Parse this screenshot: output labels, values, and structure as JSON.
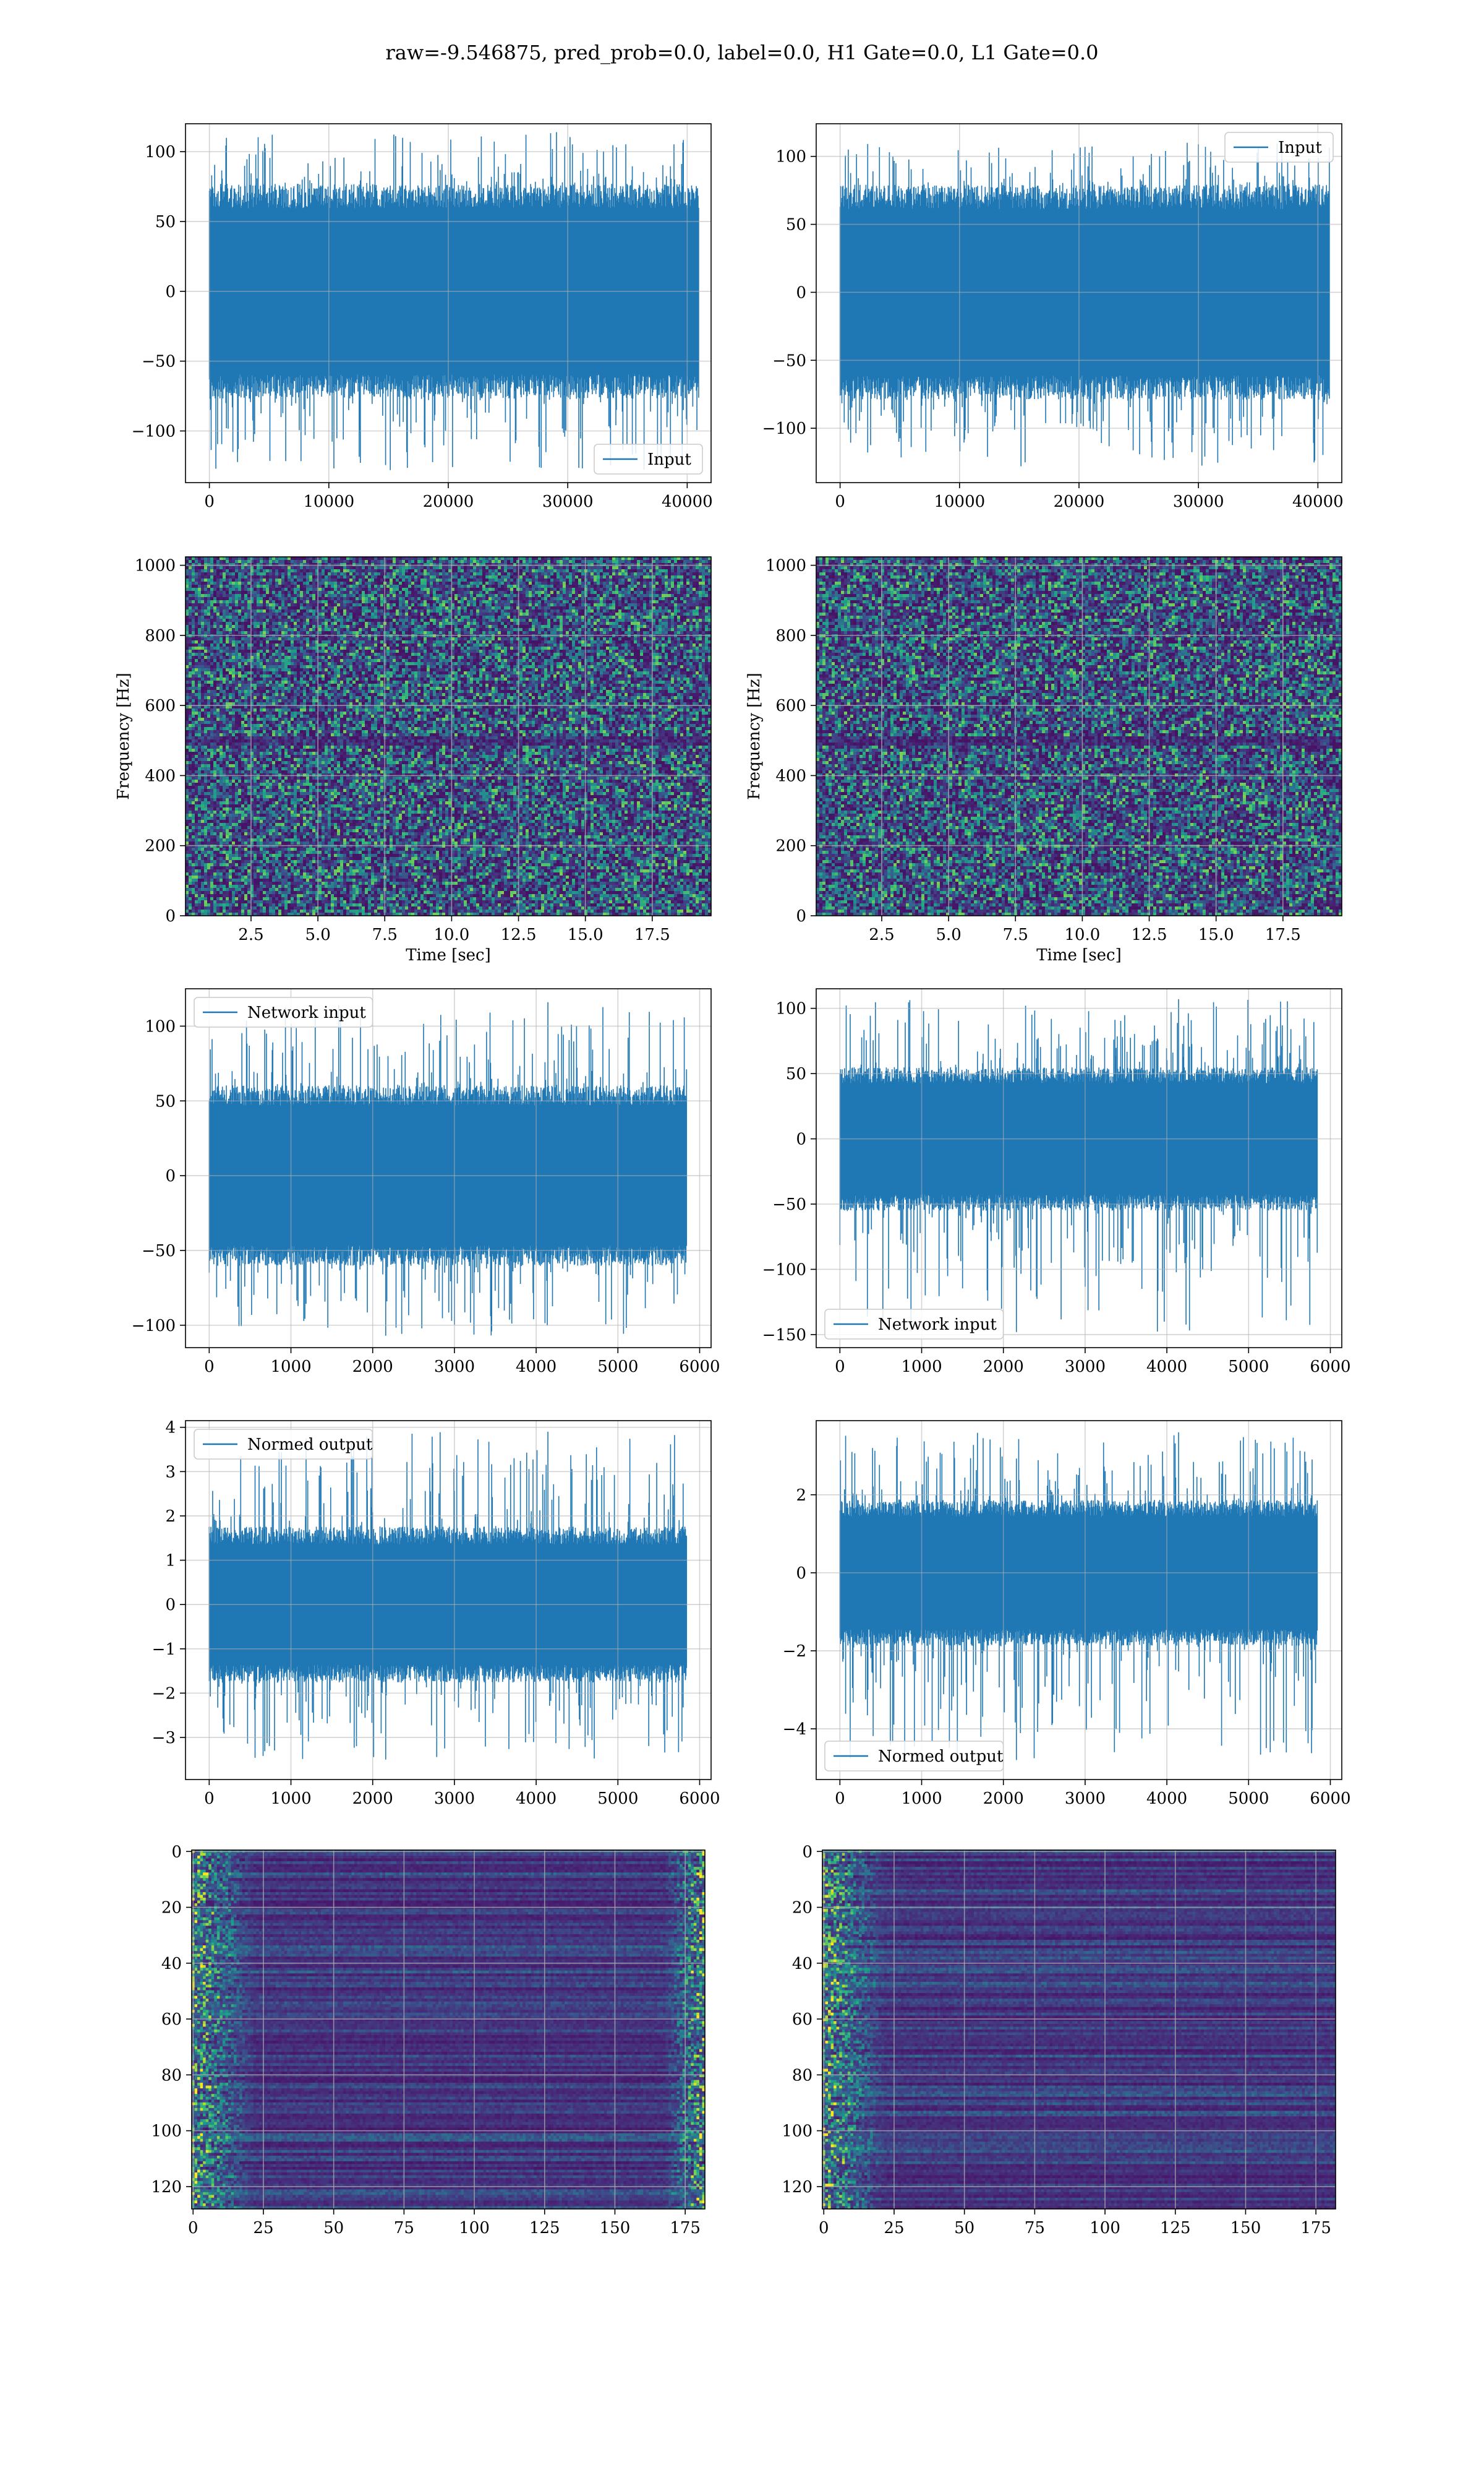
{
  "figure": {
    "suptitle": "raw=-9.546875, pred_prob=0.0, label=0.0, H1 Gate=0.0, L1 Gate=0.0"
  },
  "colors": {
    "series": "#1f77b4",
    "grid": "#b0b0b0",
    "viridis": [
      "#440154",
      "#482878",
      "#3e4989",
      "#31688e",
      "#26828e",
      "#1f9e89",
      "#35b779",
      "#6ece58",
      "#b5de2b",
      "#fde725"
    ]
  },
  "chart_data": [
    {
      "id": "raw-h1",
      "type": "line",
      "xlim": [
        -2000,
        42000
      ],
      "ylim": [
        -137,
        120
      ],
      "xticks": [
        0,
        10000,
        20000,
        30000,
        40000
      ],
      "yticks": [
        -100,
        -50,
        0,
        50,
        100
      ],
      "xticklabels": [
        "0",
        "10000",
        "20000",
        "30000",
        "40000"
      ],
      "yticklabels": [
        "−100",
        "−50",
        "0",
        "50",
        "100"
      ],
      "xlabel": "",
      "ylabel": "",
      "grid": true,
      "legend": {
        "loc": "lower-right",
        "entries": [
          "Input"
        ]
      },
      "series": [
        {
          "name": "Input",
          "x_range": [
            0,
            40960
          ],
          "envelope": [
            -70,
            70
          ],
          "extremes": [
            -128,
            114
          ]
        }
      ]
    },
    {
      "id": "raw-l1",
      "type": "line",
      "xlim": [
        -2000,
        42000
      ],
      "ylim": [
        -140,
        124
      ],
      "xticks": [
        0,
        10000,
        20000,
        30000,
        40000
      ],
      "yticks": [
        -100,
        -50,
        0,
        50,
        100
      ],
      "xticklabels": [
        "0",
        "10000",
        "20000",
        "30000",
        "40000"
      ],
      "yticklabels": [
        "−100",
        "−50",
        "0",
        "50",
        "100"
      ],
      "xlabel": "",
      "ylabel": "",
      "grid": true,
      "legend": {
        "loc": "upper-right",
        "entries": [
          "Input"
        ]
      },
      "series": [
        {
          "name": "Input",
          "x_range": [
            0,
            40960
          ],
          "envelope": [
            -72,
            72
          ],
          "extremes": [
            -128,
            110
          ]
        }
      ]
    },
    {
      "id": "spec-h1",
      "type": "heatmap",
      "xlim": [
        0.05,
        19.7
      ],
      "ylim": [
        0,
        1024
      ],
      "xticks": [
        2.5,
        5.0,
        7.5,
        10.0,
        12.5,
        15.0,
        17.5
      ],
      "yticks": [
        0,
        200,
        400,
        600,
        800,
        1000
      ],
      "xticklabels": [
        "2.5",
        "5.0",
        "7.5",
        "10.0",
        "12.5",
        "15.0",
        "17.5"
      ],
      "yticklabels": [
        "0",
        "200",
        "400",
        "600",
        "800",
        "1000"
      ],
      "xlabel": "Time [sec]",
      "ylabel": "Frequency [Hz]",
      "grid": true,
      "colormap": "viridis",
      "notes": "noise spectrogram, dark band near 500 Hz"
    },
    {
      "id": "spec-l1",
      "type": "heatmap",
      "xlim": [
        0.05,
        19.7
      ],
      "ylim": [
        0,
        1024
      ],
      "xticks": [
        2.5,
        5.0,
        7.5,
        10.0,
        12.5,
        15.0,
        17.5
      ],
      "yticks": [
        0,
        200,
        400,
        600,
        800,
        1000
      ],
      "xticklabels": [
        "2.5",
        "5.0",
        "7.5",
        "10.0",
        "12.5",
        "15.0",
        "17.5"
      ],
      "yticklabels": [
        "0",
        "200",
        "400",
        "600",
        "800",
        "1000"
      ],
      "xlabel": "Time [sec]",
      "ylabel": "Frequency [Hz]",
      "grid": true,
      "colormap": "viridis",
      "notes": "noise spectrogram, dark band near 500 Hz"
    },
    {
      "id": "net-h1",
      "type": "line",
      "xlim": [
        -290,
        6140
      ],
      "ylim": [
        -115,
        125
      ],
      "xticks": [
        0,
        1000,
        2000,
        3000,
        4000,
        5000,
        6000
      ],
      "yticks": [
        -100,
        -50,
        0,
        50,
        100
      ],
      "xticklabels": [
        "0",
        "1000",
        "2000",
        "3000",
        "4000",
        "5000",
        "6000"
      ],
      "yticklabels": [
        "−100",
        "−50",
        "0",
        "50",
        "100"
      ],
      "xlabel": "",
      "ylabel": "",
      "grid": true,
      "legend": {
        "loc": "upper-left",
        "entries": [
          "Network input"
        ]
      },
      "series": [
        {
          "name": "Network input",
          "x_range": [
            0,
            5840
          ],
          "envelope": [
            -55,
            55
          ],
          "extremes": [
            -107,
            116
          ]
        }
      ]
    },
    {
      "id": "net-l1",
      "type": "line",
      "xlim": [
        -290,
        6140
      ],
      "ylim": [
        -160,
        115
      ],
      "xticks": [
        0,
        1000,
        2000,
        3000,
        4000,
        5000,
        6000
      ],
      "yticks": [
        -150,
        -100,
        -50,
        0,
        50,
        100
      ],
      "xticklabels": [
        "0",
        "1000",
        "2000",
        "3000",
        "4000",
        "5000",
        "6000"
      ],
      "yticklabels": [
        "−150",
        "−100",
        "−50",
        "0",
        "50",
        "100"
      ],
      "xlabel": "",
      "ylabel": "",
      "grid": true,
      "legend": {
        "loc": "lower-left",
        "entries": [
          "Network input"
        ]
      },
      "series": [
        {
          "name": "Network input",
          "x_range": [
            0,
            5840
          ],
          "envelope": [
            -50,
            50
          ],
          "extremes": [
            -148,
            107
          ]
        }
      ]
    },
    {
      "id": "norm-h1",
      "type": "line",
      "xlim": [
        -290,
        6140
      ],
      "ylim": [
        -3.95,
        4.15
      ],
      "xticks": [
        0,
        1000,
        2000,
        3000,
        4000,
        5000,
        6000
      ],
      "yticks": [
        -3,
        -2,
        -1,
        0,
        1,
        2,
        3,
        4
      ],
      "xticklabels": [
        "0",
        "1000",
        "2000",
        "3000",
        "4000",
        "5000",
        "6000"
      ],
      "yticklabels": [
        "−3",
        "−2",
        "−1",
        "0",
        "1",
        "2",
        "3",
        "4"
      ],
      "xlabel": "",
      "ylabel": "",
      "grid": true,
      "legend": {
        "loc": "upper-left",
        "entries": [
          "Normed output"
        ]
      },
      "series": [
        {
          "name": "Normed output",
          "x_range": [
            0,
            5840
          ],
          "envelope": [
            -1.6,
            1.6
          ],
          "extremes": [
            -3.5,
            3.9
          ]
        }
      ]
    },
    {
      "id": "norm-l1",
      "type": "line",
      "xlim": [
        -290,
        6140
      ],
      "ylim": [
        -5.3,
        3.9
      ],
      "xticks": [
        0,
        1000,
        2000,
        3000,
        4000,
        5000,
        6000
      ],
      "yticks": [
        -4,
        -2,
        0,
        2
      ],
      "xticklabels": [
        "0",
        "1000",
        "2000",
        "3000",
        "4000",
        "5000",
        "6000"
      ],
      "yticklabels": [
        "−4",
        "−2",
        "0",
        "2"
      ],
      "xlabel": "",
      "ylabel": "",
      "grid": true,
      "legend": {
        "loc": "lower-left",
        "entries": [
          "Normed output"
        ]
      },
      "series": [
        {
          "name": "Normed output",
          "x_range": [
            0,
            5840
          ],
          "envelope": [
            -1.7,
            1.7
          ],
          "extremes": [
            -4.8,
            3.6
          ]
        }
      ]
    },
    {
      "id": "feat-h1",
      "type": "heatmap",
      "xlim": [
        -0.5,
        182
      ],
      "ylim": [
        128,
        -0.5
      ],
      "xticks": [
        0,
        25,
        50,
        75,
        100,
        125,
        150,
        175
      ],
      "yticks": [
        0,
        20,
        40,
        60,
        80,
        100,
        120
      ],
      "xticklabels": [
        "0",
        "25",
        "50",
        "75",
        "100",
        "125",
        "150",
        "175"
      ],
      "yticklabels": [
        "0",
        "20",
        "40",
        "60",
        "80",
        "100",
        "120"
      ],
      "xlabel": "",
      "ylabel": "",
      "grid": true,
      "colormap": "viridis",
      "notes": "128 channel features over 182 steps; bright at left and right edges"
    },
    {
      "id": "feat-l1",
      "type": "heatmap",
      "xlim": [
        -0.5,
        182
      ],
      "ylim": [
        128,
        -0.5
      ],
      "xticks": [
        0,
        25,
        50,
        75,
        100,
        125,
        150,
        175
      ],
      "yticks": [
        0,
        20,
        40,
        60,
        80,
        100,
        120
      ],
      "xticklabels": [
        "0",
        "25",
        "50",
        "75",
        "100",
        "125",
        "150",
        "175"
      ],
      "yticklabels": [
        "0",
        "20",
        "40",
        "60",
        "80",
        "100",
        "120"
      ],
      "xlabel": "",
      "ylabel": "",
      "grid": true,
      "colormap": "viridis",
      "notes": "128 channel features over 182 steps; bright at left edge"
    }
  ]
}
